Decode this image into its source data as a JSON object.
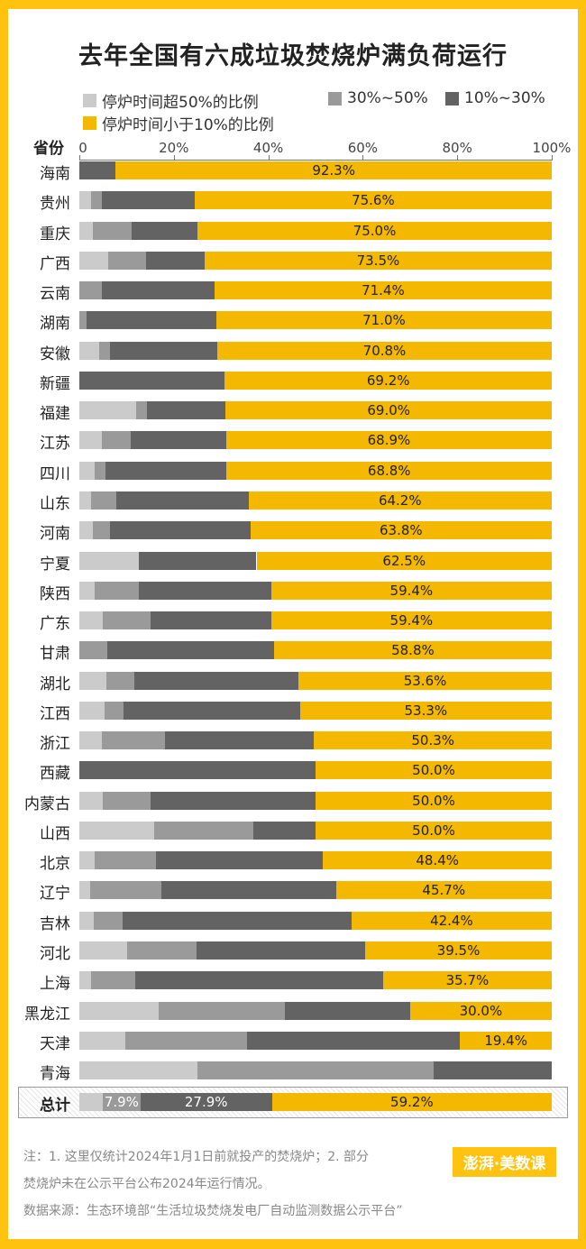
{
  "chart_data": {
    "type": "bar",
    "orientation": "horizontal",
    "stacked": true,
    "title": "去年全国有六成垃圾焚烧炉满负荷运行",
    "ylabel": "省份",
    "xlim": [
      0,
      100
    ],
    "xticks": [
      "0",
      "20%",
      "40%",
      "60%",
      "80%",
      "100%"
    ],
    "legend_position": "top",
    "series": [
      {
        "name": "停炉时间超50%的比例",
        "color": "#CBCBCB"
      },
      {
        "name": "30%~50%",
        "color": "#9A9A9A"
      },
      {
        "name": "10%~30%",
        "color": "#636363"
      },
      {
        "name": "停炉时间小于10%的比例",
        "color": "#F5B800"
      }
    ],
    "categories": [
      "海南",
      "贵州",
      "重庆",
      "广西",
      "云南",
      "湖南",
      "安徽",
      "新疆",
      "福建",
      "江苏",
      "四川",
      "山东",
      "河南",
      "宁夏",
      "陕西",
      "广东",
      "甘肃",
      "湖北",
      "江西",
      "浙江",
      "西藏",
      "内蒙古",
      "山西",
      "北京",
      "辽宁",
      "吉林",
      "河北",
      "上海",
      "黑龙江",
      "天津",
      "青海"
    ],
    "values": [
      [
        0,
        0,
        7.7,
        92.3
      ],
      [
        2.4,
        2.4,
        19.6,
        75.6
      ],
      [
        2.8,
        8.3,
        13.9,
        75.0
      ],
      [
        6.1,
        8.1,
        12.3,
        73.5
      ],
      [
        0,
        4.8,
        23.8,
        71.4
      ],
      [
        0,
        1.5,
        27.5,
        71.0
      ],
      [
        4.2,
        2.2,
        22.8,
        70.8
      ],
      [
        0,
        0,
        30.8,
        69.2
      ],
      [
        12.0,
        2.3,
        16.7,
        69.0
      ],
      [
        4.8,
        6.1,
        20.2,
        68.9
      ],
      [
        3.3,
        2.2,
        25.7,
        68.8
      ],
      [
        2.5,
        5.4,
        27.9,
        64.2
      ],
      [
        2.8,
        3.6,
        29.8,
        63.8
      ],
      [
        12.6,
        0,
        24.9,
        62.5
      ],
      [
        3.2,
        9.4,
        28.0,
        59.4
      ],
      [
        5.0,
        10.0,
        25.6,
        59.4
      ],
      [
        0,
        5.9,
        35.3,
        58.8
      ],
      [
        5.8,
        5.8,
        34.8,
        53.6
      ],
      [
        5.3,
        4.1,
        37.3,
        53.3
      ],
      [
        4.8,
        13.3,
        31.6,
        50.3
      ],
      [
        0,
        0,
        50.0,
        50.0
      ],
      [
        5.0,
        10.0,
        35.0,
        50.0
      ],
      [
        15.8,
        21.1,
        13.1,
        50.0
      ],
      [
        3.3,
        12.9,
        35.4,
        48.4
      ],
      [
        2.3,
        15.0,
        37.0,
        45.7
      ],
      [
        3.0,
        6.2,
        48.4,
        42.4
      ],
      [
        10.2,
        14.6,
        35.7,
        39.5
      ],
      [
        2.5,
        9.4,
        52.4,
        35.7
      ],
      [
        16.8,
        26.7,
        26.5,
        30.0
      ],
      [
        9.7,
        25.8,
        45.1,
        19.4
      ],
      [
        25.0,
        50.0,
        25.0,
        0
      ]
    ],
    "data_labels": [
      "92.3%",
      "75.6%",
      "75.0%",
      "73.5%",
      "71.4%",
      "71.0%",
      "70.8%",
      "69.2%",
      "69.0%",
      "68.9%",
      "68.8%",
      "64.2%",
      "63.8%",
      "62.5%",
      "59.4%",
      "59.4%",
      "58.8%",
      "53.6%",
      "53.3%",
      "50.3%",
      "50.0%",
      "50.0%",
      "50.0%",
      "48.4%",
      "45.7%",
      "42.4%",
      "39.5%",
      "35.7%",
      "30.0%",
      "19.4%",
      ""
    ],
    "total": {
      "label": "总计",
      "values": [
        5.0,
        7.9,
        27.9,
        59.2
      ],
      "data_labels": [
        "",
        "7.9%",
        "27.9%",
        "59.2%"
      ]
    }
  },
  "notes": {
    "line1": "注：1. 这里仅统计2024年1月1日前就投产的焚烧炉；2. 部分",
    "line2": "焚烧炉未在公示平台公布2024年运行情况。",
    "source": "数据来源：生态环境部“生活垃圾焚烧发电厂自动监测数据公示平台”"
  },
  "logo": "澎湃·美数课",
  "colors": {
    "frame": "#FFC20E",
    "accent": "#F5B800"
  }
}
